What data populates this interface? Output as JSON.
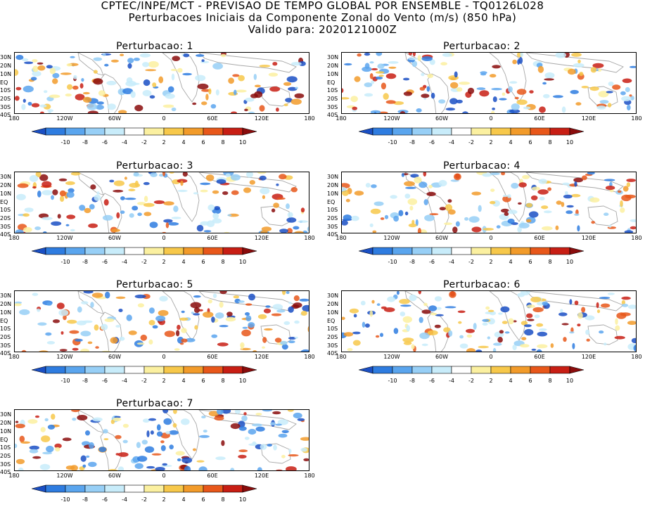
{
  "title": {
    "line1": "CPTEC/INPE/MCT - PREVISAO DE TEMPO GLOBAL POR ENSEMBLE - TQ0126L028",
    "line2": "Perturbacoes Iniciais da Componente Zonal do Vento (m/s) (850 hPa)",
    "line3": "Valido para: 2020121000Z"
  },
  "panels": [
    {
      "title": "Perturbacao: 1"
    },
    {
      "title": "Perturbacao: 2"
    },
    {
      "title": "Perturbacao: 3"
    },
    {
      "title": "Perturbacao: 4"
    },
    {
      "title": "Perturbacao: 5"
    },
    {
      "title": "Perturbacao: 6"
    },
    {
      "title": "Perturbacao: 7"
    }
  ],
  "lat_labels": [
    "30N",
    "20N",
    "10N",
    "EQ",
    "10S",
    "20S",
    "30S",
    "40S"
  ],
  "lon_labels": [
    "180",
    "120W",
    "60W",
    "0",
    "60E",
    "120E",
    "180"
  ],
  "colorbar": {
    "labels": [
      "-10",
      "-8",
      "-6",
      "-4",
      "-2",
      "2",
      "4",
      "6",
      "8",
      "10"
    ],
    "colors": [
      "#1a4fc4",
      "#2e7ce0",
      "#5aa5ee",
      "#97cff6",
      "#c8ecfa",
      "#ffffff",
      "#fbf0a0",
      "#f7c84a",
      "#f29b2a",
      "#e8571a",
      "#c81e14",
      "#8a0c0c"
    ]
  }
}
